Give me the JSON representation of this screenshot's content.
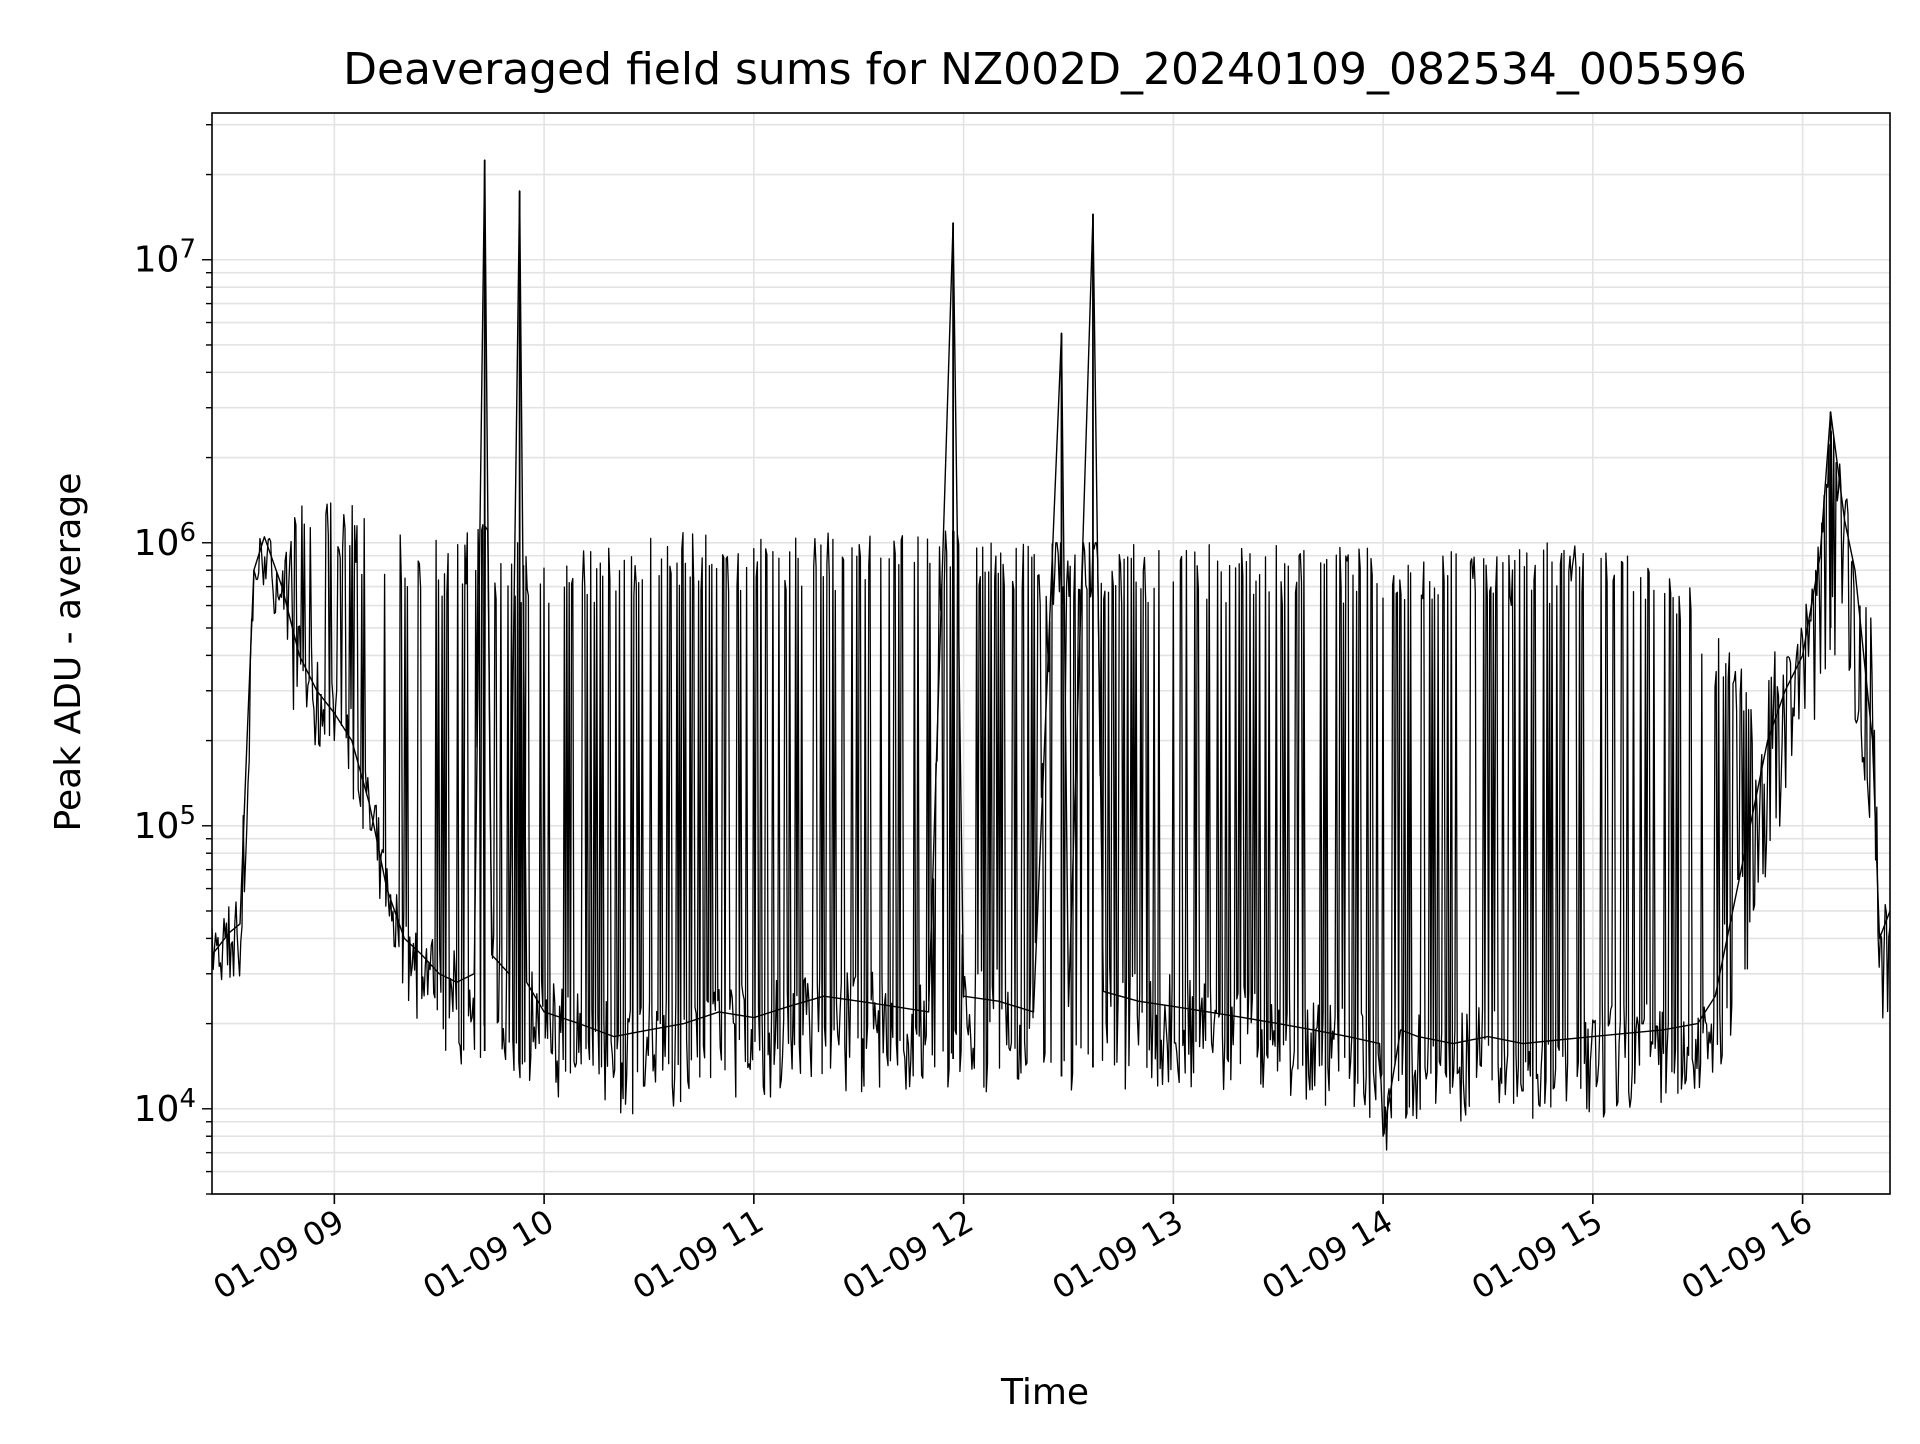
{
  "chart_data": {
    "type": "line",
    "title": "Deaveraged field sums for NZ002D_20240109_082534_005596",
    "xlabel": "Time",
    "ylabel": "Peak ADU - average",
    "yscale": "log",
    "ylim": [
      5000,
      33000000
    ],
    "xlim": [
      "2024-01-09 08:25",
      "2024-01-09 16:25"
    ],
    "grid": true,
    "legend": "none",
    "line_color": "#000000",
    "xticks": [
      {
        "x": "2024-01-09 09:00",
        "label": "01-09 09"
      },
      {
        "x": "2024-01-09 10:00",
        "label": "01-09 10"
      },
      {
        "x": "2024-01-09 11:00",
        "label": "01-09 11"
      },
      {
        "x": "2024-01-09 12:00",
        "label": "01-09 12"
      },
      {
        "x": "2024-01-09 13:00",
        "label": "01-09 13"
      },
      {
        "x": "2024-01-09 14:00",
        "label": "01-09 14"
      },
      {
        "x": "2024-01-09 15:00",
        "label": "01-09 15"
      },
      {
        "x": "2024-01-09 16:00",
        "label": "01-09 16"
      }
    ],
    "yticks": [
      {
        "base": "10",
        "exp": "4",
        "value": 10000
      },
      {
        "base": "10",
        "exp": "5",
        "value": 100000
      },
      {
        "base": "10",
        "exp": "6",
        "value": 1000000
      },
      {
        "base": "10",
        "exp": "7",
        "value": 10000000
      }
    ],
    "series": [
      {
        "x": [
          "2024-01-09 08:25",
          "2024-01-09 08:30",
          "2024-01-09 08:33",
          "2024-01-09 08:35",
          "2024-01-09 08:37",
          "2024-01-09 08:40",
          "2024-01-09 08:45",
          "2024-01-09 08:50",
          "2024-01-09 08:55",
          "2024-01-09 09:00",
          "2024-01-09 09:05",
          "2024-01-09 09:10",
          "2024-01-09 09:15",
          "2024-01-09 09:20",
          "2024-01-09 09:25",
          "2024-01-09 09:30",
          "2024-01-09 09:35",
          "2024-01-09 09:40",
          "2024-01-09 09:43",
          "2024-01-09 09:45",
          "2024-01-09 09:50",
          "2024-01-09 09:53",
          "2024-01-09 09:55",
          "2024-01-09 10:00",
          "2024-01-09 10:10",
          "2024-01-09 10:20",
          "2024-01-09 10:30",
          "2024-01-09 10:40",
          "2024-01-09 10:50",
          "2024-01-09 11:00",
          "2024-01-09 11:10",
          "2024-01-09 11:20",
          "2024-01-09 11:30",
          "2024-01-09 11:40",
          "2024-01-09 11:50",
          "2024-01-09 11:57",
          "2024-01-09 12:00",
          "2024-01-09 12:10",
          "2024-01-09 12:20",
          "2024-01-09 12:28",
          "2024-01-09 12:30",
          "2024-01-09 12:37",
          "2024-01-09 12:40",
          "2024-01-09 12:50",
          "2024-01-09 13:00",
          "2024-01-09 13:10",
          "2024-01-09 13:20",
          "2024-01-09 13:30",
          "2024-01-09 13:40",
          "2024-01-09 13:50",
          "2024-01-09 13:59",
          "2024-01-09 14:00",
          "2024-01-09 14:05",
          "2024-01-09 14:10",
          "2024-01-09 14:20",
          "2024-01-09 14:30",
          "2024-01-09 14:40",
          "2024-01-09 14:50",
          "2024-01-09 15:00",
          "2024-01-09 15:10",
          "2024-01-09 15:20",
          "2024-01-09 15:30",
          "2024-01-09 15:35",
          "2024-01-09 15:40",
          "2024-01-09 15:45",
          "2024-01-09 15:50",
          "2024-01-09 15:55",
          "2024-01-09 16:00",
          "2024-01-09 16:05",
          "2024-01-09 16:08",
          "2024-01-09 16:12",
          "2024-01-09 16:15",
          "2024-01-09 16:20",
          "2024-01-09 16:22",
          "2024-01-09 16:25"
        ],
        "y": [
          35000,
          42000,
          45000,
          200000,
          800000,
          1050000,
          700000,
          400000,
          300000,
          250000,
          200000,
          120000,
          60000,
          40000,
          35000,
          30000,
          28000,
          30000,
          22500000,
          35000,
          30000,
          17500000,
          28000,
          22000,
          20000,
          18000,
          19000,
          20000,
          22000,
          21000,
          23000,
          25000,
          24000,
          23000,
          22000,
          13500000,
          25000,
          24000,
          22000,
          5500000,
          23000,
          14500000,
          26000,
          24000,
          23000,
          22000,
          21000,
          20000,
          19000,
          18000,
          17000,
          8000,
          19000,
          18000,
          17000,
          18000,
          17000,
          17500,
          18000,
          18500,
          19000,
          20000,
          25000,
          50000,
          100000,
          200000,
          300000,
          400000,
          900000,
          2900000,
          1200000,
          800000,
          200000,
          40000,
          50000
        ],
        "envelope_high": [
          45000,
          52000,
          60000,
          220000,
          900000,
          1150000,
          800000,
          1500000,
          1600000,
          1500000,
          1400000,
          1200000,
          1100000,
          1100000,
          1000000,
          1050000,
          1100000,
          1200000,
          1150000,
          1050000,
          1000000,
          1000000,
          950000,
          1000000,
          1000000,
          1000000,
          1050000,
          1100000,
          1100000,
          1100000,
          1100000,
          1100000,
          1100000,
          1100000,
          1100000,
          1100000,
          1050000,
          1000000,
          1000000,
          1000000,
          1000000,
          1000000,
          1000000,
          1000000,
          1000000,
          1000000,
          1000000,
          1000000,
          1000000,
          1000000,
          1000000,
          1000000,
          1000000,
          1000000,
          1000000,
          1000000,
          1000000,
          1000000,
          950000,
          900000,
          800000,
          700000,
          500000,
          450000,
          300000,
          400000,
          450000,
          600000,
          1200000,
          2500000,
          2000000,
          1500000,
          500000,
          50000,
          55000
        ],
        "envelope_low": [
          27000,
          30000,
          33000,
          100000,
          700000,
          900000,
          500000,
          250000,
          220000,
          200000,
          150000,
          100000,
          50000,
          33000,
          22000,
          18000,
          17000,
          16000,
          16000,
          17000,
          16000,
          15000,
          14000,
          14000,
          13000,
          12000,
          12000,
          13000,
          14000,
          13000,
          14000,
          15000,
          14000,
          15000,
          14000,
          15000,
          15000,
          14000,
          13000,
          13000,
          13000,
          14000,
          14000,
          13000,
          14000,
          14000,
          14000,
          14000,
          13000,
          12000,
          11000,
          8000,
          11000,
          11000,
          11000,
          11000,
          11000,
          11000,
          11000,
          12000,
          13000,
          14000,
          16000,
          20000,
          40000,
          80000,
          150000,
          200000,
          350000,
          500000,
          500000,
          300000,
          80000,
          20000,
          30000
        ]
      }
    ]
  }
}
